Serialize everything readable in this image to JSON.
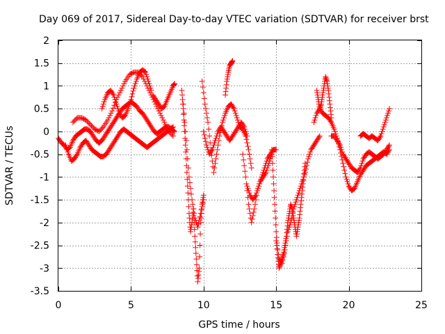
{
  "chart_data": {
    "type": "scatter",
    "title": "Day 069 of 2017, Sidereal Day-to-day VTEC variation (SDTVAR) for receiver brst",
    "xlabel": "GPS time / hours",
    "ylabel": "SDTVAR / TECUs",
    "xlim": [
      0,
      25
    ],
    "ylim": [
      -3.5,
      2
    ],
    "xticks": [
      0,
      5,
      10,
      15,
      20,
      25
    ],
    "yticks": [
      -3.5,
      -3,
      -2.5,
      -2,
      -1.5,
      -1,
      -0.5,
      0,
      0.5,
      1,
      1.5,
      2
    ],
    "xtick_labels": [
      "0",
      "5",
      "10",
      "15",
      "20",
      "25"
    ],
    "ytick_labels": [
      "-3.5",
      "-3",
      "-2.5",
      "-2",
      "-1.5",
      "-1",
      "-0.5",
      "0",
      "0.5",
      "1",
      "1.5",
      "2"
    ],
    "grid": true,
    "marker": "+",
    "color": "#ff0000",
    "series": [
      {
        "x": [
          0.0,
          0.2,
          0.4,
          0.6,
          0.8,
          1.0,
          1.2,
          1.4,
          1.6,
          1.8,
          2.0,
          2.2,
          2.4,
          2.6,
          2.8,
          3.0,
          3.2,
          3.4,
          3.6,
          3.8,
          4.0,
          4.2,
          4.4,
          4.6,
          4.8,
          5.0,
          5.2,
          5.4,
          5.6,
          5.8,
          6.0,
          6.2,
          6.4,
          6.6,
          6.8,
          7.0,
          7.2,
          7.4,
          7.6,
          7.8,
          8.0
        ],
        "y": [
          -0.15,
          -0.25,
          -0.3,
          -0.4,
          -0.35,
          -0.2,
          -0.1,
          -0.05,
          0.0,
          0.05,
          0.05,
          0.0,
          -0.1,
          -0.2,
          -0.25,
          -0.2,
          -0.1,
          0.0,
          0.1,
          0.2,
          0.3,
          0.4,
          0.5,
          0.55,
          0.6,
          0.65,
          0.6,
          0.55,
          0.45,
          0.4,
          0.3,
          0.2,
          0.1,
          0.0,
          -0.05,
          0.0,
          0.05,
          0.1,
          0.1,
          0.05,
          0.0
        ]
      },
      {
        "x": [
          0.5,
          0.7,
          0.9,
          1.1,
          1.3,
          1.5,
          1.7,
          1.9,
          2.1,
          2.3,
          2.5,
          2.7,
          2.9,
          3.1,
          3.3,
          3.5,
          3.7,
          3.9,
          4.1,
          4.3,
          4.5,
          4.7,
          4.9,
          5.1,
          5.3,
          5.5,
          5.7,
          5.9,
          6.1,
          6.3,
          6.5,
          6.7,
          6.9,
          7.1,
          7.3,
          7.5,
          7.7,
          7.9
        ],
        "y": [
          -0.3,
          -0.5,
          -0.65,
          -0.6,
          -0.5,
          -0.35,
          -0.25,
          -0.2,
          -0.3,
          -0.4,
          -0.45,
          -0.5,
          -0.55,
          -0.55,
          -0.5,
          -0.4,
          -0.3,
          -0.2,
          -0.1,
          0.0,
          0.05,
          0.0,
          -0.05,
          -0.1,
          -0.15,
          -0.2,
          -0.25,
          -0.3,
          -0.35,
          -0.3,
          -0.25,
          -0.2,
          -0.15,
          -0.1,
          -0.05,
          0.0,
          0.05,
          0.1
        ]
      },
      {
        "x": [
          1.0,
          1.3,
          1.6,
          1.9,
          2.2,
          2.5,
          2.8,
          3.1,
          3.4,
          3.7,
          4.0,
          4.3,
          4.6,
          4.9,
          5.2,
          5.5,
          5.8,
          6.1,
          6.4,
          6.7,
          7.0,
          7.3,
          7.6,
          7.9
        ],
        "y": [
          0.2,
          0.3,
          0.3,
          0.25,
          0.15,
          0.05,
          0.0,
          0.1,
          0.25,
          0.45,
          0.7,
          0.9,
          1.1,
          1.25,
          1.3,
          1.3,
          1.2,
          1.0,
          0.8,
          0.6,
          0.4,
          0.2,
          0.0,
          -0.1
        ]
      },
      {
        "x": [
          3.0,
          3.2,
          3.4,
          3.6,
          3.8,
          4.0,
          4.2,
          4.4,
          4.6,
          4.8,
          5.0,
          5.2,
          5.4,
          5.6,
          5.8,
          6.0,
          6.2,
          6.4
        ],
        "y": [
          0.5,
          0.7,
          0.85,
          0.9,
          0.8,
          0.6,
          0.4,
          0.3,
          0.35,
          0.5,
          0.7,
          0.95,
          1.15,
          1.3,
          1.35,
          1.3,
          1.1,
          0.9
        ]
      },
      {
        "x": [
          6.5,
          6.7,
          6.9,
          7.1,
          7.3,
          7.5,
          7.7,
          7.9,
          8.0
        ],
        "y": [
          0.8,
          0.7,
          0.6,
          0.5,
          0.55,
          0.7,
          0.85,
          1.0,
          1.05
        ]
      },
      {
        "x": [
          8.5,
          8.6,
          8.7,
          8.8,
          8.9,
          9.0,
          9.1,
          9.2,
          9.3,
          9.4,
          9.5,
          9.6,
          9.7,
          9.8,
          9.9,
          10.0
        ],
        "y": [
          0.9,
          0.5,
          0.0,
          -0.6,
          -1.2,
          -1.8,
          -2.2,
          -2.0,
          -1.7,
          -2.3,
          -2.8,
          -3.3,
          -3.0,
          -2.0,
          -1.6,
          -1.4
        ]
      },
      {
        "x": [
          8.6,
          8.8,
          9.0,
          9.2,
          9.4,
          9.6,
          9.8,
          10.0
        ],
        "y": [
          0.6,
          -0.2,
          -1.0,
          -1.5,
          -1.9,
          -2.1,
          -1.8,
          -1.5
        ]
      },
      {
        "x": [
          9.9,
          10.1,
          10.3,
          10.5,
          10.7,
          10.9,
          11.1,
          11.3,
          11.5,
          11.7,
          11.9,
          12.1,
          12.3,
          12.5,
          12.7,
          12.9,
          13.1,
          13.3
        ],
        "y": [
          1.1,
          0.6,
          0.2,
          -0.4,
          -0.9,
          -0.5,
          -0.1,
          0.2,
          0.4,
          0.55,
          0.6,
          0.5,
          0.3,
          0.1,
          0.05,
          -0.1,
          -0.4,
          -0.8
        ]
      },
      {
        "x": [
          10.0,
          10.2,
          10.4,
          10.6,
          10.8,
          11.0,
          11.2,
          11.4,
          11.6,
          11.8,
          12.0,
          12.2,
          12.4,
          12.6,
          12.8,
          13.0
        ],
        "y": [
          0.0,
          -0.3,
          -0.5,
          -0.4,
          -0.2,
          0.0,
          0.1,
          0.0,
          -0.1,
          -0.2,
          -0.1,
          0.0,
          0.1,
          0.2,
          0.1,
          -0.1
        ]
      },
      {
        "x": [
          11.5,
          11.6,
          11.7,
          11.8,
          11.9,
          12.0
        ],
        "y": [
          0.8,
          1.1,
          1.3,
          1.45,
          1.5,
          1.55
        ]
      },
      {
        "x": [
          12.7,
          12.9,
          13.1,
          13.3,
          13.5,
          13.7,
          13.9,
          14.1,
          14.3,
          14.5,
          14.7
        ],
        "y": [
          -0.5,
          -1.0,
          -1.6,
          -2.0,
          -1.7,
          -1.3,
          -1.1,
          -1.0,
          -0.9,
          -0.7,
          -0.5
        ]
      },
      {
        "x": [
          13.0,
          13.2,
          13.4,
          13.6,
          13.8,
          14.0,
          14.2,
          14.4,
          14.6,
          14.8,
          15.0
        ],
        "y": [
          -1.2,
          -1.4,
          -1.5,
          -1.4,
          -1.2,
          -1.0,
          -0.8,
          -0.6,
          -0.5,
          -0.4,
          -0.4
        ]
      },
      {
        "x": [
          14.7,
          14.8,
          14.9,
          15.0,
          15.1,
          15.2,
          15.3,
          15.4,
          15.5,
          15.6,
          15.7,
          15.8,
          15.9,
          16.0,
          16.1,
          16.2,
          16.3,
          16.4,
          16.5,
          16.6,
          16.7,
          16.8,
          16.9,
          17.0
        ],
        "y": [
          -0.4,
          -1.0,
          -1.6,
          -2.2,
          -2.7,
          -3.0,
          -2.9,
          -2.8,
          -2.7,
          -2.5,
          -2.3,
          -2.0,
          -1.8,
          -1.6,
          -1.7,
          -1.9,
          -2.1,
          -2.3,
          -2.1,
          -1.9,
          -1.6,
          -1.3,
          -1.0,
          -0.7
        ]
      },
      {
        "x": [
          15.0,
          15.2,
          15.4,
          15.6,
          15.8,
          16.0,
          16.2,
          16.4,
          16.6,
          16.8,
          17.0,
          17.2,
          17.4,
          17.6,
          17.8,
          18.0
        ],
        "y": [
          -2.4,
          -2.8,
          -2.9,
          -2.6,
          -2.2,
          -2.0,
          -1.7,
          -1.5,
          -1.3,
          -1.1,
          -0.9,
          -0.6,
          -0.4,
          -0.3,
          -0.2,
          -0.1
        ]
      },
      {
        "x": [
          17.8,
          17.9,
          18.0,
          18.1,
          18.2,
          18.3,
          18.4,
          18.5,
          18.6,
          18.7,
          18.8
        ],
        "y": [
          0.9,
          0.7,
          0.5,
          0.6,
          0.8,
          1.0,
          1.2,
          1.1,
          0.9,
          0.6,
          0.3
        ]
      },
      {
        "x": [
          17.6,
          17.8,
          18.0,
          18.2,
          18.4,
          18.6,
          18.8,
          19.0,
          19.2,
          19.4,
          19.6,
          19.8,
          20.0,
          20.2,
          20.4,
          20.6,
          20.8,
          21.0,
          21.2,
          21.4,
          21.6,
          21.8,
          22.0,
          22.2,
          22.4,
          22.6,
          22.8
        ],
        "y": [
          0.2,
          0.4,
          0.5,
          0.4,
          0.35,
          0.3,
          0.2,
          0.05,
          -0.15,
          -0.4,
          -0.7,
          -1.0,
          -1.2,
          -1.3,
          -1.25,
          -1.1,
          -0.95,
          -0.85,
          -0.75,
          -0.7,
          -0.65,
          -0.6,
          -0.55,
          -0.5,
          -0.45,
          -0.5,
          -0.4
        ]
      },
      {
        "x": [
          18.8,
          19.0,
          19.2,
          19.4,
          19.6,
          19.8,
          20.0,
          20.2,
          20.4,
          20.6,
          20.8,
          21.0,
          21.2,
          21.4,
          21.6,
          21.8,
          22.0,
          22.2,
          22.4,
          22.6,
          22.8
        ],
        "y": [
          -0.1,
          -0.1,
          -0.2,
          -0.3,
          -0.5,
          -0.6,
          -0.7,
          -0.8,
          -0.85,
          -0.9,
          -0.8,
          -0.6,
          -0.5,
          -0.45,
          -0.5,
          -0.55,
          -0.6,
          -0.55,
          -0.5,
          -0.4,
          -0.3
        ]
      },
      {
        "x": [
          20.8,
          21.0,
          21.2,
          21.4,
          21.6,
          21.8,
          22.0,
          22.2,
          22.4,
          22.6,
          22.8
        ],
        "y": [
          -0.1,
          -0.05,
          -0.1,
          -0.15,
          -0.1,
          -0.15,
          -0.2,
          -0.1,
          0.1,
          0.3,
          0.5
        ]
      }
    ]
  }
}
